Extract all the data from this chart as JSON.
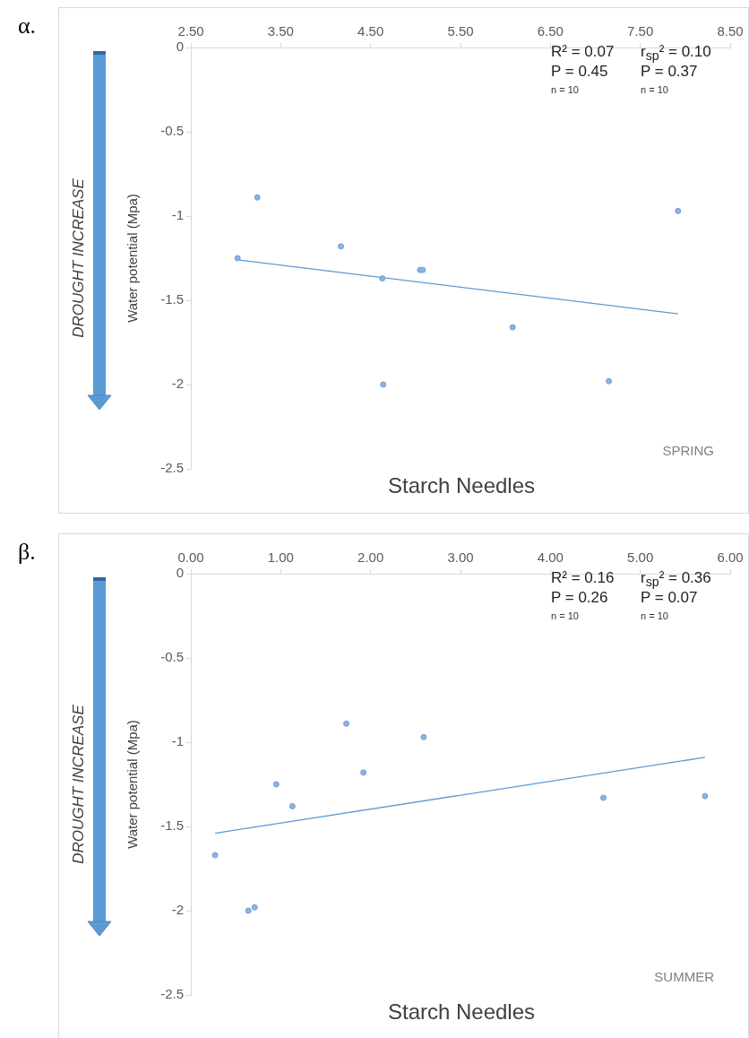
{
  "chart_data": [
    {
      "type": "scatter",
      "title": "α.",
      "xlabel": "Starch Needles",
      "ylabel": "Water potential (Mpa)",
      "annotations": [
        "R² = 0.07",
        "P = 0.45",
        "n = 10",
        "r$_{sp}$² = 0.10",
        "P = 0.37",
        "n = 10",
        "SPRING",
        "DROUGHT INCREASE"
      ],
      "xlim": [
        2.5,
        8.5
      ],
      "xticks": [
        {
          "value": 2.5,
          "label": "2.50"
        },
        {
          "value": 3.5,
          "label": "3.50"
        },
        {
          "value": 4.5,
          "label": "4.50"
        },
        {
          "value": 5.5,
          "label": "5.50"
        },
        {
          "value": 6.5,
          "label": "6.50"
        },
        {
          "value": 7.5,
          "label": "7.50"
        },
        {
          "value": 8.5,
          "label": "8.50"
        }
      ],
      "ylim": [
        -2.5,
        0
      ],
      "yticks": [
        0,
        -0.5,
        -1,
        -1.5,
        -2,
        -2.5
      ],
      "series": [
        {
          "type": "scatter",
          "marker": "circle",
          "color": "#8db3e2",
          "x": [
            3.02,
            3.24,
            4.17,
            4.63,
            4.64,
            5.05,
            5.08,
            6.08,
            7.15,
            7.92
          ],
          "values": [
            -1.25,
            -0.89,
            -1.18,
            -1.37,
            -2.0,
            -1.32,
            -1.32,
            -1.66,
            -1.98,
            -0.97
          ]
        },
        {
          "type": "line",
          "marker": "none",
          "color": "#5b9bd5",
          "x": [
            3.02,
            7.92
          ],
          "values": [
            -1.26,
            -1.58
          ]
        }
      ]
    },
    {
      "type": "scatter",
      "title": "β.",
      "xlabel": "Starch Needles",
      "ylabel": "Water potential (Mpa)",
      "annotations": [
        "R² = 0.16",
        "P = 0.26",
        "n = 10",
        "r$_{sp}$² = 0.36",
        "P = 0.07",
        "n = 10",
        "SUMMER",
        "DROUGHT INCREASE"
      ],
      "xlim": [
        0,
        6
      ],
      "xticks": [
        {
          "value": 0,
          "label": "0.00"
        },
        {
          "value": 1,
          "label": "1.00"
        },
        {
          "value": 2,
          "label": "2.00"
        },
        {
          "value": 3,
          "label": "3.00"
        },
        {
          "value": 4,
          "label": "4.00"
        },
        {
          "value": 5,
          "label": "5.00"
        },
        {
          "value": 6,
          "label": "6.00"
        }
      ],
      "ylim": [
        -2.5,
        0
      ],
      "yticks": [
        0,
        -0.5,
        -1,
        -1.5,
        -2,
        -2.5
      ],
      "series": [
        {
          "type": "scatter",
          "marker": "circle",
          "color": "#8db3e2",
          "x": [
            0.27,
            0.64,
            0.71,
            0.95,
            1.13,
            1.73,
            1.92,
            2.59,
            4.59,
            5.72
          ],
          "values": [
            -1.67,
            -2.0,
            -1.98,
            -1.25,
            -1.38,
            -0.89,
            -1.18,
            -0.97,
            -1.33,
            -1.32
          ]
        },
        {
          "type": "line",
          "marker": "none",
          "color": "#5b9bd5",
          "x": [
            0.27,
            5.72
          ],
          "values": [
            -1.54,
            -1.09
          ]
        }
      ]
    }
  ]
}
